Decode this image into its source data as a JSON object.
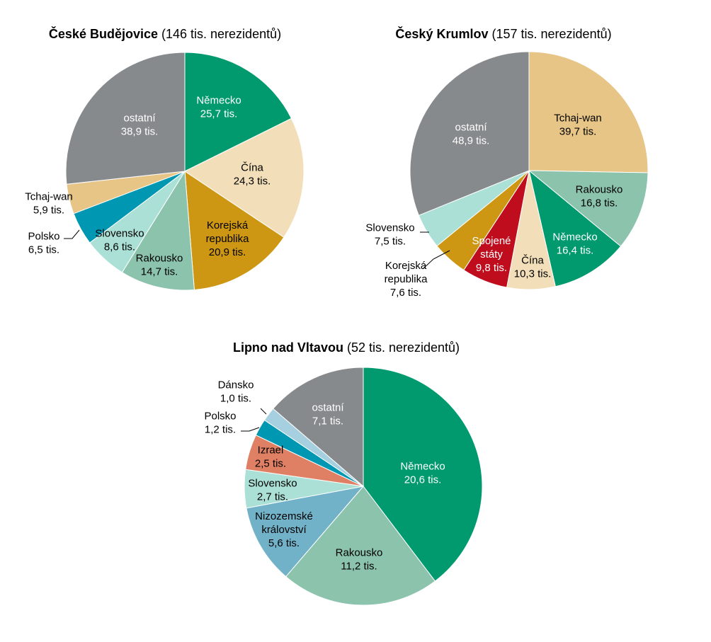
{
  "chart_data": [
    {
      "type": "pie",
      "title": "České Budějovice",
      "subtitle": "(146 tis. nerezidentů)",
      "slices": [
        {
          "name": "Německo",
          "value": 25.7,
          "label": "25,7 tis.",
          "color": "#009a6e"
        },
        {
          "name": "Čína",
          "value": 24.3,
          "label": "24,3 tis.",
          "color": "#f2dfba"
        },
        {
          "name": "Korejská republika",
          "value": 20.9,
          "label": "20,9 tis.",
          "color": "#cd9713"
        },
        {
          "name": "Rakousko",
          "value": 14.7,
          "label": "14,7 tis.",
          "color": "#8cc3ad"
        },
        {
          "name": "Slovensko",
          "value": 8.6,
          "label": "8,6 tis.",
          "color": "#abe0d7"
        },
        {
          "name": "Polsko",
          "value": 6.5,
          "label": "6,5 tis.",
          "color": "#0097b2"
        },
        {
          "name": "Tchaj-wan",
          "value": 5.9,
          "label": "5,9 tis.",
          "color": "#e6c586"
        },
        {
          "name": "ostatní",
          "value": 38.9,
          "label": "38,9 tis.",
          "color": "#878a8c"
        }
      ]
    },
    {
      "type": "pie",
      "title": "Český Krumlov",
      "subtitle": "(157 tis. nerezidentů)",
      "slices": [
        {
          "name": "Tchaj-wan",
          "value": 39.7,
          "label": "39,7 tis.",
          "color": "#e6c586"
        },
        {
          "name": "Rakousko",
          "value": 16.8,
          "label": "16,8 tis.",
          "color": "#8cc3ad"
        },
        {
          "name": "Německo",
          "value": 16.4,
          "label": "16,4 tis.",
          "color": "#009a6e"
        },
        {
          "name": "Čína",
          "value": 10.3,
          "label": "10,3 tis.",
          "color": "#f2dfba"
        },
        {
          "name": "Spojené státy",
          "value": 9.8,
          "label": "9,8 tis.",
          "color": "#c00d1e"
        },
        {
          "name": "Korejská republika",
          "value": 7.6,
          "label": "7,6 tis.",
          "color": "#cd9713"
        },
        {
          "name": "Slovensko",
          "value": 7.5,
          "label": "7,5 tis.",
          "color": "#abe0d7"
        },
        {
          "name": "ostatní",
          "value": 48.9,
          "label": "48,9 tis.",
          "color": "#878a8c"
        }
      ]
    },
    {
      "type": "pie",
      "title": "Lipno nad Vltavou",
      "subtitle": "(52 tis. nerezidentů)",
      "slices": [
        {
          "name": "Německo",
          "value": 20.6,
          "label": "20,6 tis.",
          "color": "#009a6e"
        },
        {
          "name": "Rakousko",
          "value": 11.2,
          "label": "11,2 tis.",
          "color": "#8cc3ad"
        },
        {
          "name": "Nizozemské království",
          "value": 5.6,
          "label": "5,6 tis.",
          "color": "#72b2c9"
        },
        {
          "name": "Slovensko",
          "value": 2.7,
          "label": "2,7 tis.",
          "color": "#abe0d7"
        },
        {
          "name": "Izrael",
          "value": 2.5,
          "label": "2,5 tis.",
          "color": "#df8064"
        },
        {
          "name": "Polsko",
          "value": 1.2,
          "label": "1,2 tis.",
          "color": "#0097b2"
        },
        {
          "name": "Dánsko",
          "value": 1.0,
          "label": "1,0 tis.",
          "color": "#a6cfe0"
        },
        {
          "name": "ostatní",
          "value": 7.1,
          "label": "7,1 tis.",
          "color": "#878a8c"
        }
      ]
    }
  ]
}
